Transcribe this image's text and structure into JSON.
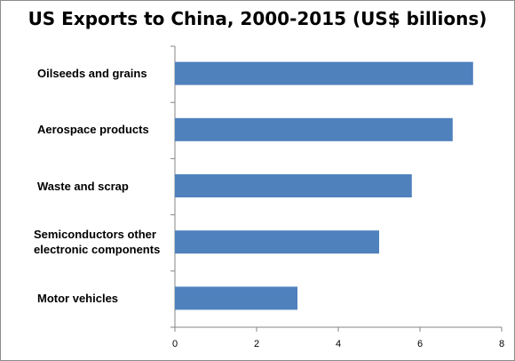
{
  "chart_data": {
    "type": "bar",
    "orientation": "horizontal",
    "title": "US Exports to China, 2000-2015 (US$ billions)",
    "categories": [
      "Oilseeds and grains",
      "Aerospace products",
      "Waste and scrap",
      "Semiconductors  other electronic components",
      "Motor vehicles"
    ],
    "category_lines": [
      [
        "Oilseeds and grains"
      ],
      [
        "Aerospace products"
      ],
      [
        "Waste and scrap"
      ],
      [
        "Semiconductors  other",
        "electronic components"
      ],
      [
        "Motor vehicles"
      ]
    ],
    "values": [
      7.3,
      6.8,
      5.8,
      5.0,
      3.0
    ],
    "xlim": [
      0,
      8
    ],
    "xticks": [
      "0",
      "2",
      "4",
      "6",
      "8"
    ],
    "xlabel": "",
    "ylabel": "",
    "grid": false,
    "bar_color": "#4f81bd"
  }
}
